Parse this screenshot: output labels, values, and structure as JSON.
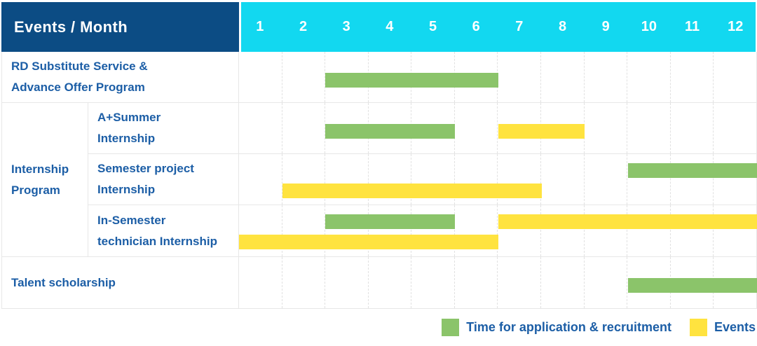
{
  "title": "Events / Month",
  "months": [
    "1",
    "2",
    "3",
    "4",
    "5",
    "6",
    "7",
    "8",
    "9",
    "10",
    "11",
    "12"
  ],
  "group_label": "Internship\nProgram",
  "legend": {
    "items": [
      {
        "name": "application",
        "label": "Time for application & recruitment",
        "color": "#8bc46a"
      },
      {
        "name": "events",
        "label": "Events",
        "color": "#ffe33f"
      }
    ]
  },
  "colors": {
    "header_bg": "#0c4c84",
    "months_bg": "#12d8f0",
    "label_text": "#1c5ea6",
    "green": "#8bc46a",
    "yellow": "#ffe33f"
  },
  "chart_data": {
    "type": "bar",
    "subtype": "gantt",
    "title": "Events / Month",
    "x_axis": {
      "label": "Month",
      "categories": [
        1,
        2,
        3,
        4,
        5,
        6,
        7,
        8,
        9,
        10,
        11,
        12
      ]
    },
    "grid": true,
    "legend_position": "bottom-right",
    "series_legend": [
      "Time for application & recruitment",
      "Events"
    ],
    "rows": [
      {
        "label": "RD Substitute Service &\nAdvance Offer Program",
        "group": "",
        "bars": [
          {
            "series": "Time for application & recruitment",
            "color": "green",
            "start_month": 3,
            "end_month": 6,
            "lane": "single"
          }
        ]
      },
      {
        "label": "A+Summer\nInternship",
        "group": "Internship Program",
        "bars": [
          {
            "series": "Time for application & recruitment",
            "color": "green",
            "start_month": 3,
            "end_month": 5,
            "lane": "single"
          },
          {
            "series": "Events",
            "color": "yellow",
            "start_month": 7,
            "end_month": 8,
            "lane": "single"
          }
        ]
      },
      {
        "label": "Semester project\nInternship",
        "group": "Internship Program",
        "bars": [
          {
            "series": "Time for application & recruitment",
            "color": "green",
            "start_month": 10,
            "end_month": 12,
            "lane": "top"
          },
          {
            "series": "Events",
            "color": "yellow",
            "start_month": 2,
            "end_month": 7,
            "lane": "bottom"
          }
        ]
      },
      {
        "label": "In-Semester\ntechnician Internship",
        "group": "Internship Program",
        "bars": [
          {
            "series": "Time for application & recruitment",
            "color": "green",
            "start_month": 3,
            "end_month": 5,
            "lane": "top"
          },
          {
            "series": "Events",
            "color": "yellow",
            "start_month": 7,
            "end_month": 12,
            "lane": "top"
          },
          {
            "series": "Events",
            "color": "yellow",
            "start_month": 1,
            "end_month": 6,
            "lane": "bottom"
          }
        ]
      },
      {
        "label": "Talent scholarship",
        "group": "",
        "bars": [
          {
            "series": "Time for application & recruitment",
            "color": "green",
            "start_month": 10,
            "end_month": 12,
            "lane": "single"
          }
        ]
      }
    ]
  }
}
